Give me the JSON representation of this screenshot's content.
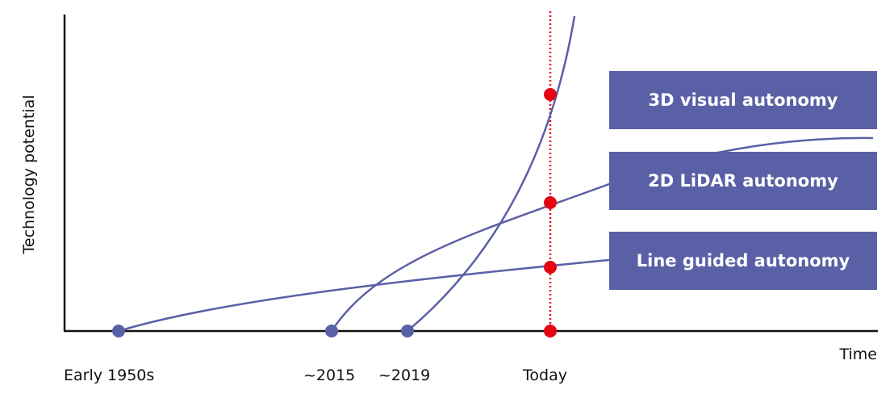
{
  "axes": {
    "y_label": "Technology potential",
    "x_label": "Time"
  },
  "timeline": {
    "ticks": [
      "Early 1950s",
      "~2015",
      "~2019",
      "Today"
    ]
  },
  "technologies": [
    {
      "label": "3D visual autonomy",
      "start": "~2019"
    },
    {
      "label": "2D LiDAR autonomy",
      "start": "~2015"
    },
    {
      "label": "Line guided autonomy",
      "start": "Early 1950s"
    }
  ],
  "colors": {
    "curve": "#5a60a6",
    "box": "#5a60a6",
    "box_text": "#ffffff",
    "today_marker": "#e30613",
    "axis": "#111111"
  }
}
